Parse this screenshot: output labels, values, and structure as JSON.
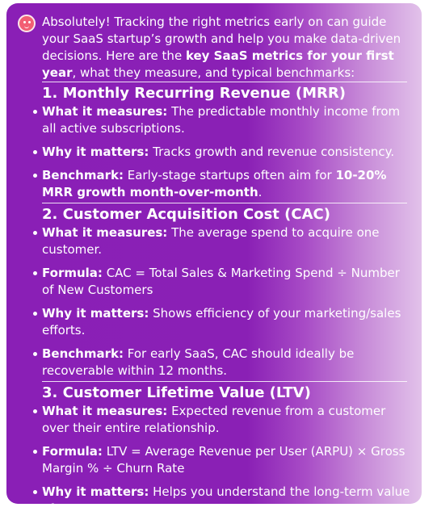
{
  "message": {
    "intro_before": "Absolutely! Tracking the right metrics early on can guide your SaaS startup’s growth and help you make data-driven decisions. Here are the ",
    "intro_bold": "key SaaS metrics for your first year",
    "intro_after": ", what they measure, and typical benchmarks:",
    "sections": [
      {
        "title": "1. Monthly Recurring Revenue (MRR)",
        "items": [
          {
            "label": "What it measures:",
            "text": " The predictable monthly income from all active subscriptions."
          },
          {
            "label": "Why it matters:",
            "text": " Tracks growth and revenue consistency."
          },
          {
            "label": "Benchmark:",
            "text": " Early-stage startups often aim for ",
            "bold_tail": "10-20% MRR growth month-over-month",
            "tail": "."
          }
        ]
      },
      {
        "title": "2. Customer Acquisition Cost (CAC)",
        "items": [
          {
            "label": "What it measures:",
            "text": " The average spend to acquire one customer."
          },
          {
            "label": "Formula:",
            "text": " CAC = Total Sales & Marketing Spend ÷ Number of New Customers"
          },
          {
            "label": "Why it matters:",
            "text": " Shows efficiency of your marketing/sales efforts."
          },
          {
            "label": "Benchmark:",
            "text": " For early SaaS, CAC should ideally be recoverable within 12 months."
          }
        ]
      },
      {
        "title": "3. Customer Lifetime Value (LTV)",
        "items": [
          {
            "label": "What it measures:",
            "text": " Expected revenue from a customer over their entire relationship."
          },
          {
            "label": "Formula:",
            "text": " LTV = Average Revenue per User (ARPU) × Gross Margin % ÷ Churn Rate"
          },
          {
            "label": "Why it matters:",
            "text": " Helps you understand the long-term value of"
          }
        ]
      }
    ]
  },
  "colors": {
    "card_start": "#8a1fb6",
    "card_end": "#e2c2ea",
    "avatar": "#f25e73",
    "text": "#ffffff"
  },
  "icons": {
    "avatar": "assistant-avatar-icon"
  }
}
